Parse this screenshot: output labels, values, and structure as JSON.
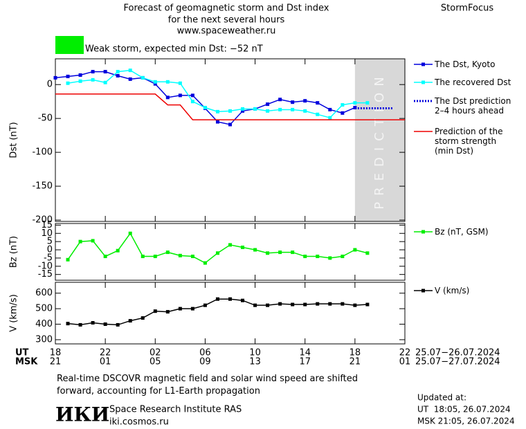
{
  "header": {
    "title": [
      "Forecast of geomagnetic storm and Dst index",
      "for the next several hours",
      "www.spaceweather.ru"
    ],
    "brand": "StormFocus",
    "storm_color": "#00ee00",
    "storm_text": "Weak storm, expected min Dst: −52 nT"
  },
  "chart_data": [
    {
      "type": "line",
      "ylabel": "Dst (nT)",
      "xlim": [
        0,
        28
      ],
      "ylim": [
        -202,
        38
      ],
      "yticks": [
        0,
        -50,
        -100,
        -150,
        -200
      ],
      "prediction_band": {
        "label": "PREDICTION",
        "xlim": [
          24,
          28
        ],
        "color": "#d8d8d8"
      },
      "series": [
        {
          "name": "The Dst, Kyoto",
          "color": "#0000dd",
          "marker": "square",
          "dash": "solid",
          "x": [
            0,
            1,
            2,
            3,
            4,
            5,
            6,
            7,
            8,
            9,
            10,
            11,
            12,
            13,
            14,
            15,
            16,
            17,
            18,
            19,
            20,
            21,
            22,
            23,
            24
          ],
          "values": [
            10,
            12,
            14,
            19,
            19,
            13,
            8,
            10,
            1,
            -19,
            -16,
            -16,
            -35,
            -55,
            -59,
            -39,
            -36,
            -29,
            -22,
            -26,
            -24,
            -27,
            -37,
            -42,
            -34
          ]
        },
        {
          "name": "The recovered Dst",
          "color": "#00ffff",
          "marker": "square",
          "dash": "solid",
          "x": [
            1,
            2,
            3,
            4,
            5,
            6,
            7,
            8,
            9,
            10,
            11,
            12,
            13,
            14,
            15,
            16,
            17,
            18,
            19,
            20,
            21,
            22,
            23,
            24,
            25
          ],
          "values": [
            2,
            5,
            7,
            3,
            19,
            21,
            10,
            4,
            4,
            2,
            -25,
            -34,
            -40,
            -39,
            -36,
            -36,
            -39,
            -37,
            -37,
            -39,
            -44,
            -49,
            -30,
            -27,
            -27
          ]
        },
        {
          "name": "The Dst prediction\n2–4 hours ahead",
          "color": "#0000dd",
          "marker": "none",
          "dash": "dotted",
          "x": [
            24,
            27
          ],
          "values": [
            -35,
            -35
          ]
        },
        {
          "name": "Prediction of the\nstorm strength\n(min Dst)",
          "color": "#ee0000",
          "marker": "none",
          "dash": "solid",
          "x": [
            0,
            8,
            9,
            10,
            11,
            28
          ],
          "values": [
            -14,
            -14,
            -30,
            -30,
            -52,
            -52
          ]
        }
      ]
    },
    {
      "type": "line",
      "ylabel": "Bz (nT)",
      "xlim": [
        0,
        28
      ],
      "ylim": [
        -18.5,
        16
      ],
      "yticks": [
        15,
        10,
        5,
        0,
        -5,
        -10,
        -15
      ],
      "series": [
        {
          "name": "Bz (nT, GSM)",
          "color": "#00ee00",
          "marker": "square",
          "dash": "solid",
          "x": [
            1,
            2,
            3,
            4,
            5,
            6,
            7,
            8,
            9,
            10,
            11,
            12,
            13,
            14,
            15,
            16,
            17,
            18,
            19,
            20,
            21,
            22,
            23,
            24,
            25
          ],
          "values": [
            -6,
            5,
            5.5,
            -4,
            -0.5,
            10,
            -4,
            -4,
            -1.5,
            -3.5,
            -4,
            -8,
            -2,
            3,
            1.5,
            0,
            -2,
            -1.5,
            -1.5,
            -4,
            -4,
            -5,
            -4,
            0,
            -2
          ]
        }
      ]
    },
    {
      "type": "line",
      "ylabel": "V (km/s)",
      "xlim": [
        0,
        28
      ],
      "ylim": [
        273,
        670
      ],
      "yticks": [
        600,
        500,
        400,
        300
      ],
      "xticks": [
        {
          "value": 0,
          "label": "18"
        },
        {
          "value": 4,
          "label": "22"
        },
        {
          "value": 8,
          "label": "02"
        },
        {
          "value": 12,
          "label": "06"
        },
        {
          "value": 16,
          "label": "10"
        },
        {
          "value": 20,
          "label": "14"
        },
        {
          "value": 24,
          "label": "18"
        },
        {
          "value": 28,
          "label": "22"
        }
      ],
      "xticks_msk": [
        {
          "value": 0,
          "label": "21"
        },
        {
          "value": 4,
          "label": "01"
        },
        {
          "value": 8,
          "label": "05"
        },
        {
          "value": 12,
          "label": "09"
        },
        {
          "value": 16,
          "label": "13"
        },
        {
          "value": 20,
          "label": "17"
        },
        {
          "value": 24,
          "label": "21"
        },
        {
          "value": 28,
          "label": "01"
        }
      ],
      "xaxis_names": [
        "UT",
        "MSK"
      ],
      "date_ranges": [
        "25.07−26.07.2024",
        "25.07−27.07.2024"
      ],
      "series": [
        {
          "name": "V (km/s)",
          "color": "#000000",
          "marker": "square",
          "dash": "solid",
          "x": [
            1,
            2,
            3,
            4,
            5,
            6,
            7,
            8,
            9,
            10,
            11,
            12,
            13,
            14,
            15,
            16,
            17,
            18,
            19,
            20,
            21,
            22,
            23,
            24,
            25
          ],
          "values": [
            404,
            396,
            409,
            400,
            396,
            422,
            440,
            484,
            480,
            500,
            500,
            522,
            562,
            562,
            553,
            522,
            522,
            531,
            527,
            527,
            531,
            531,
            531,
            522,
            527
          ]
        }
      ]
    }
  ],
  "footer": {
    "note": "Real-time DSCOVR magnetic field and solar wind speed are shifted\nforward, accounting for L1-Earth propagation",
    "logo": "ИКИ",
    "institute": "Space Research Institute RAS",
    "site": "iki.cosmos.ru",
    "updated": [
      "Updated at:",
      "UT  18:05, 26.07.2024",
      "MSK 21:05, 26.07.2024"
    ]
  }
}
